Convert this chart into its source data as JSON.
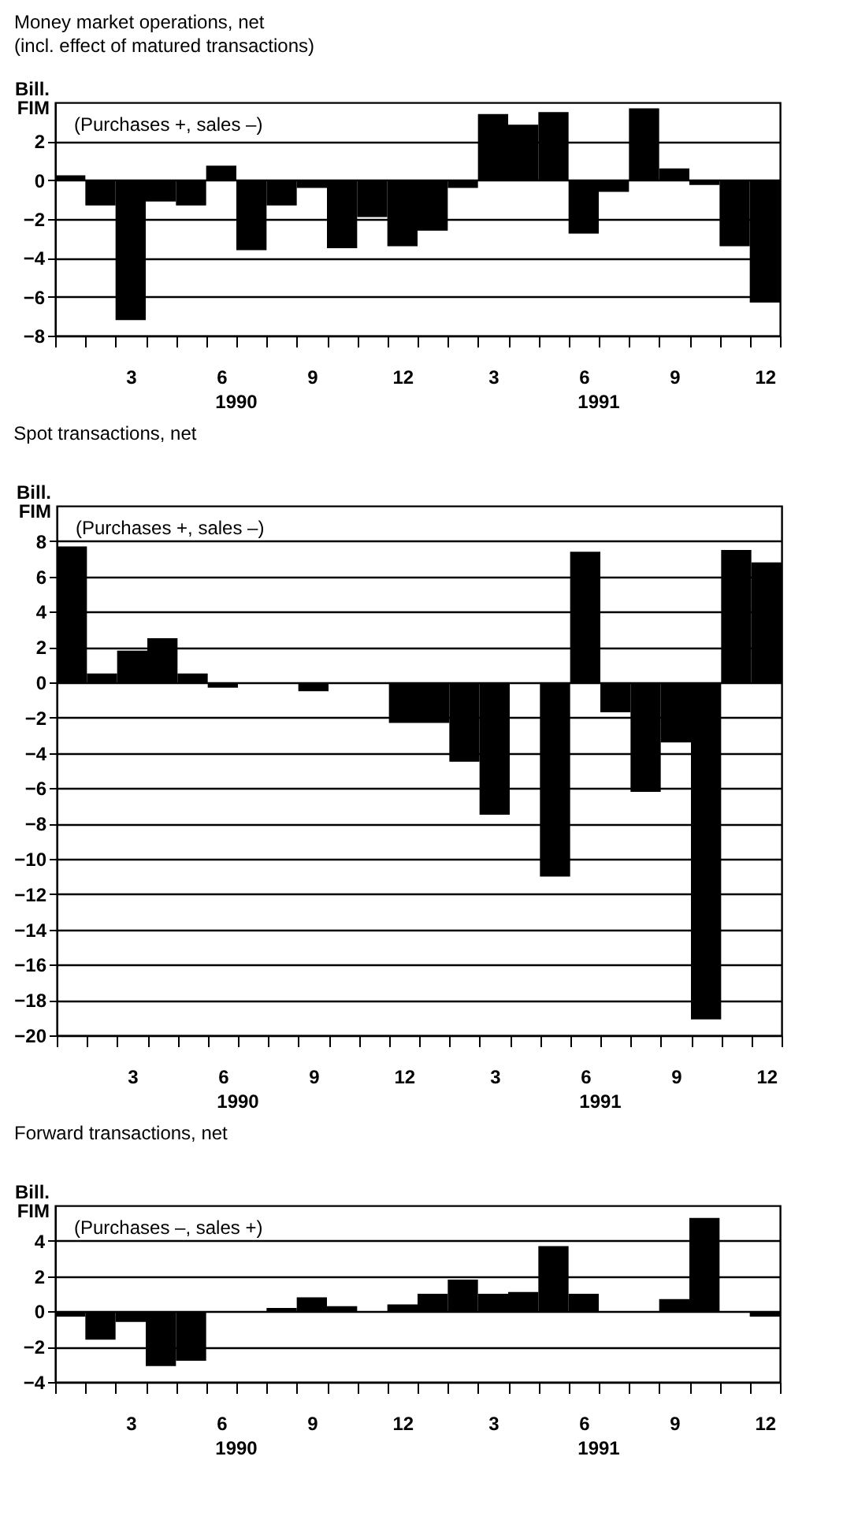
{
  "chart_data": [
    {
      "type": "bar",
      "title": "Money market operations, net",
      "subtitle": "(incl. effect of matured transactions)",
      "ylabel": "Bill.\nFIM",
      "annotations": [
        "(Purchases +, sales –)",
        "1990",
        "1991"
      ],
      "categories": [
        null,
        null,
        "3",
        null,
        null,
        "6",
        null,
        null,
        "9",
        null,
        null,
        "12",
        null,
        null,
        "3",
        null,
        null,
        "6",
        null,
        null,
        "9",
        null,
        null,
        "12"
      ],
      "values": [
        0.25,
        -1.3,
        -7.2,
        -1.1,
        -1.3,
        0.75,
        -3.6,
        -1.3,
        -0.4,
        -3.5,
        -1.9,
        -3.4,
        -2.6,
        -0.4,
        3.4,
        2.85,
        3.5,
        -2.75,
        -0.6,
        3.7,
        0.6,
        -0.25,
        -3.4,
        -6.3
      ],
      "color": "#000000",
      "ylim": [
        -8,
        4
      ],
      "yticks": [
        -8,
        -6,
        -4,
        -2,
        0,
        2
      ],
      "grid": "y"
    },
    {
      "type": "bar",
      "title": "Spot transactions, net",
      "ylabel": "Bill.\nFIM",
      "annotations": [
        "(Purchases +, sales –)",
        "1990",
        "1991"
      ],
      "categories": [
        null,
        null,
        "3",
        null,
        null,
        "6",
        null,
        null,
        "9",
        null,
        null,
        "12",
        null,
        null,
        "3",
        null,
        null,
        "6",
        null,
        null,
        "9",
        null,
        null,
        "12"
      ],
      "values": [
        7.7,
        0.5,
        1.8,
        2.5,
        0.5,
        -0.3,
        0,
        0,
        -0.5,
        0,
        0,
        -2.3,
        -2.3,
        -4.5,
        -7.5,
        0,
        -11.0,
        7.4,
        -1.7,
        -6.2,
        -3.4,
        -19.1,
        7.5,
        6.8
      ],
      "color": "#000000",
      "ylim": [
        -20,
        10
      ],
      "yticks": [
        -20,
        -18,
        -16,
        -14,
        -12,
        -10,
        -8,
        -6,
        -4,
        -2,
        0,
        2,
        4,
        6,
        8
      ],
      "grid": "y"
    },
    {
      "type": "bar",
      "title": "Forward transactions, net",
      "ylabel": "Bill.\nFIM",
      "annotations": [
        "(Purchases –, sales +)",
        "1990",
        "1991"
      ],
      "categories": [
        null,
        null,
        "3",
        null,
        null,
        "6",
        null,
        null,
        "9",
        null,
        null,
        "12",
        null,
        null,
        "3",
        null,
        null,
        "6",
        null,
        null,
        "9",
        null,
        null,
        "12"
      ],
      "values": [
        -0.3,
        -1.6,
        -0.6,
        -3.1,
        -2.8,
        0,
        0,
        0.2,
        0.8,
        0.3,
        0,
        0.4,
        1.0,
        1.8,
        1.0,
        1.1,
        3.7,
        1.0,
        0,
        0,
        0.7,
        5.3,
        0,
        -0.3
      ],
      "color": "#000000",
      "ylim": [
        -4,
        6
      ],
      "yticks": [
        -4,
        -2,
        0,
        2,
        4
      ],
      "grid": "y"
    }
  ]
}
